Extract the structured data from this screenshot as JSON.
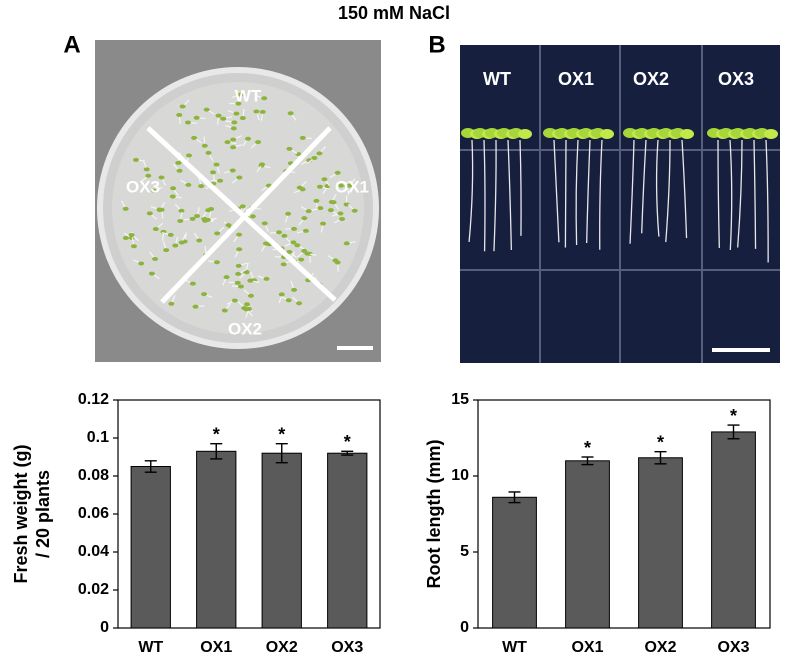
{
  "title": "150 mM NaCl",
  "panels": [
    {
      "label": "A",
      "photo_labels": [
        "WT",
        "OX1",
        "OX2",
        "OX3"
      ]
    },
    {
      "label": "B",
      "photo_labels": [
        "WT",
        "OX1",
        "OX2",
        "OX3"
      ]
    }
  ],
  "chart_data": [
    {
      "type": "bar",
      "ylabel": [
        "Fresh weight (g)",
        "/ 20 plants"
      ],
      "categories": [
        "WT",
        "OX1",
        "OX2",
        "OX3"
      ],
      "values": [
        0.085,
        0.093,
        0.092,
        0.092
      ],
      "errors": [
        0.003,
        0.004,
        0.005,
        0.001
      ],
      "significance": [
        null,
        "*",
        "*",
        "*"
      ],
      "color": "#5a5a5a",
      "ylim": [
        0,
        0.12
      ],
      "yticks": [
        0,
        0.02,
        0.04,
        0.06,
        0.08,
        0.1,
        0.12
      ]
    },
    {
      "type": "bar",
      "ylabel": [
        "Root length (mm)"
      ],
      "categories": [
        "WT",
        "OX1",
        "OX2",
        "OX3"
      ],
      "values": [
        8.6,
        11.0,
        11.2,
        12.9
      ],
      "errors": [
        0.35,
        0.25,
        0.4,
        0.45
      ],
      "significance": [
        null,
        "*",
        "*",
        "*"
      ],
      "color": "#5a5a5a",
      "ylim": [
        0,
        15
      ],
      "yticks": [
        0,
        5,
        10,
        15
      ]
    }
  ]
}
